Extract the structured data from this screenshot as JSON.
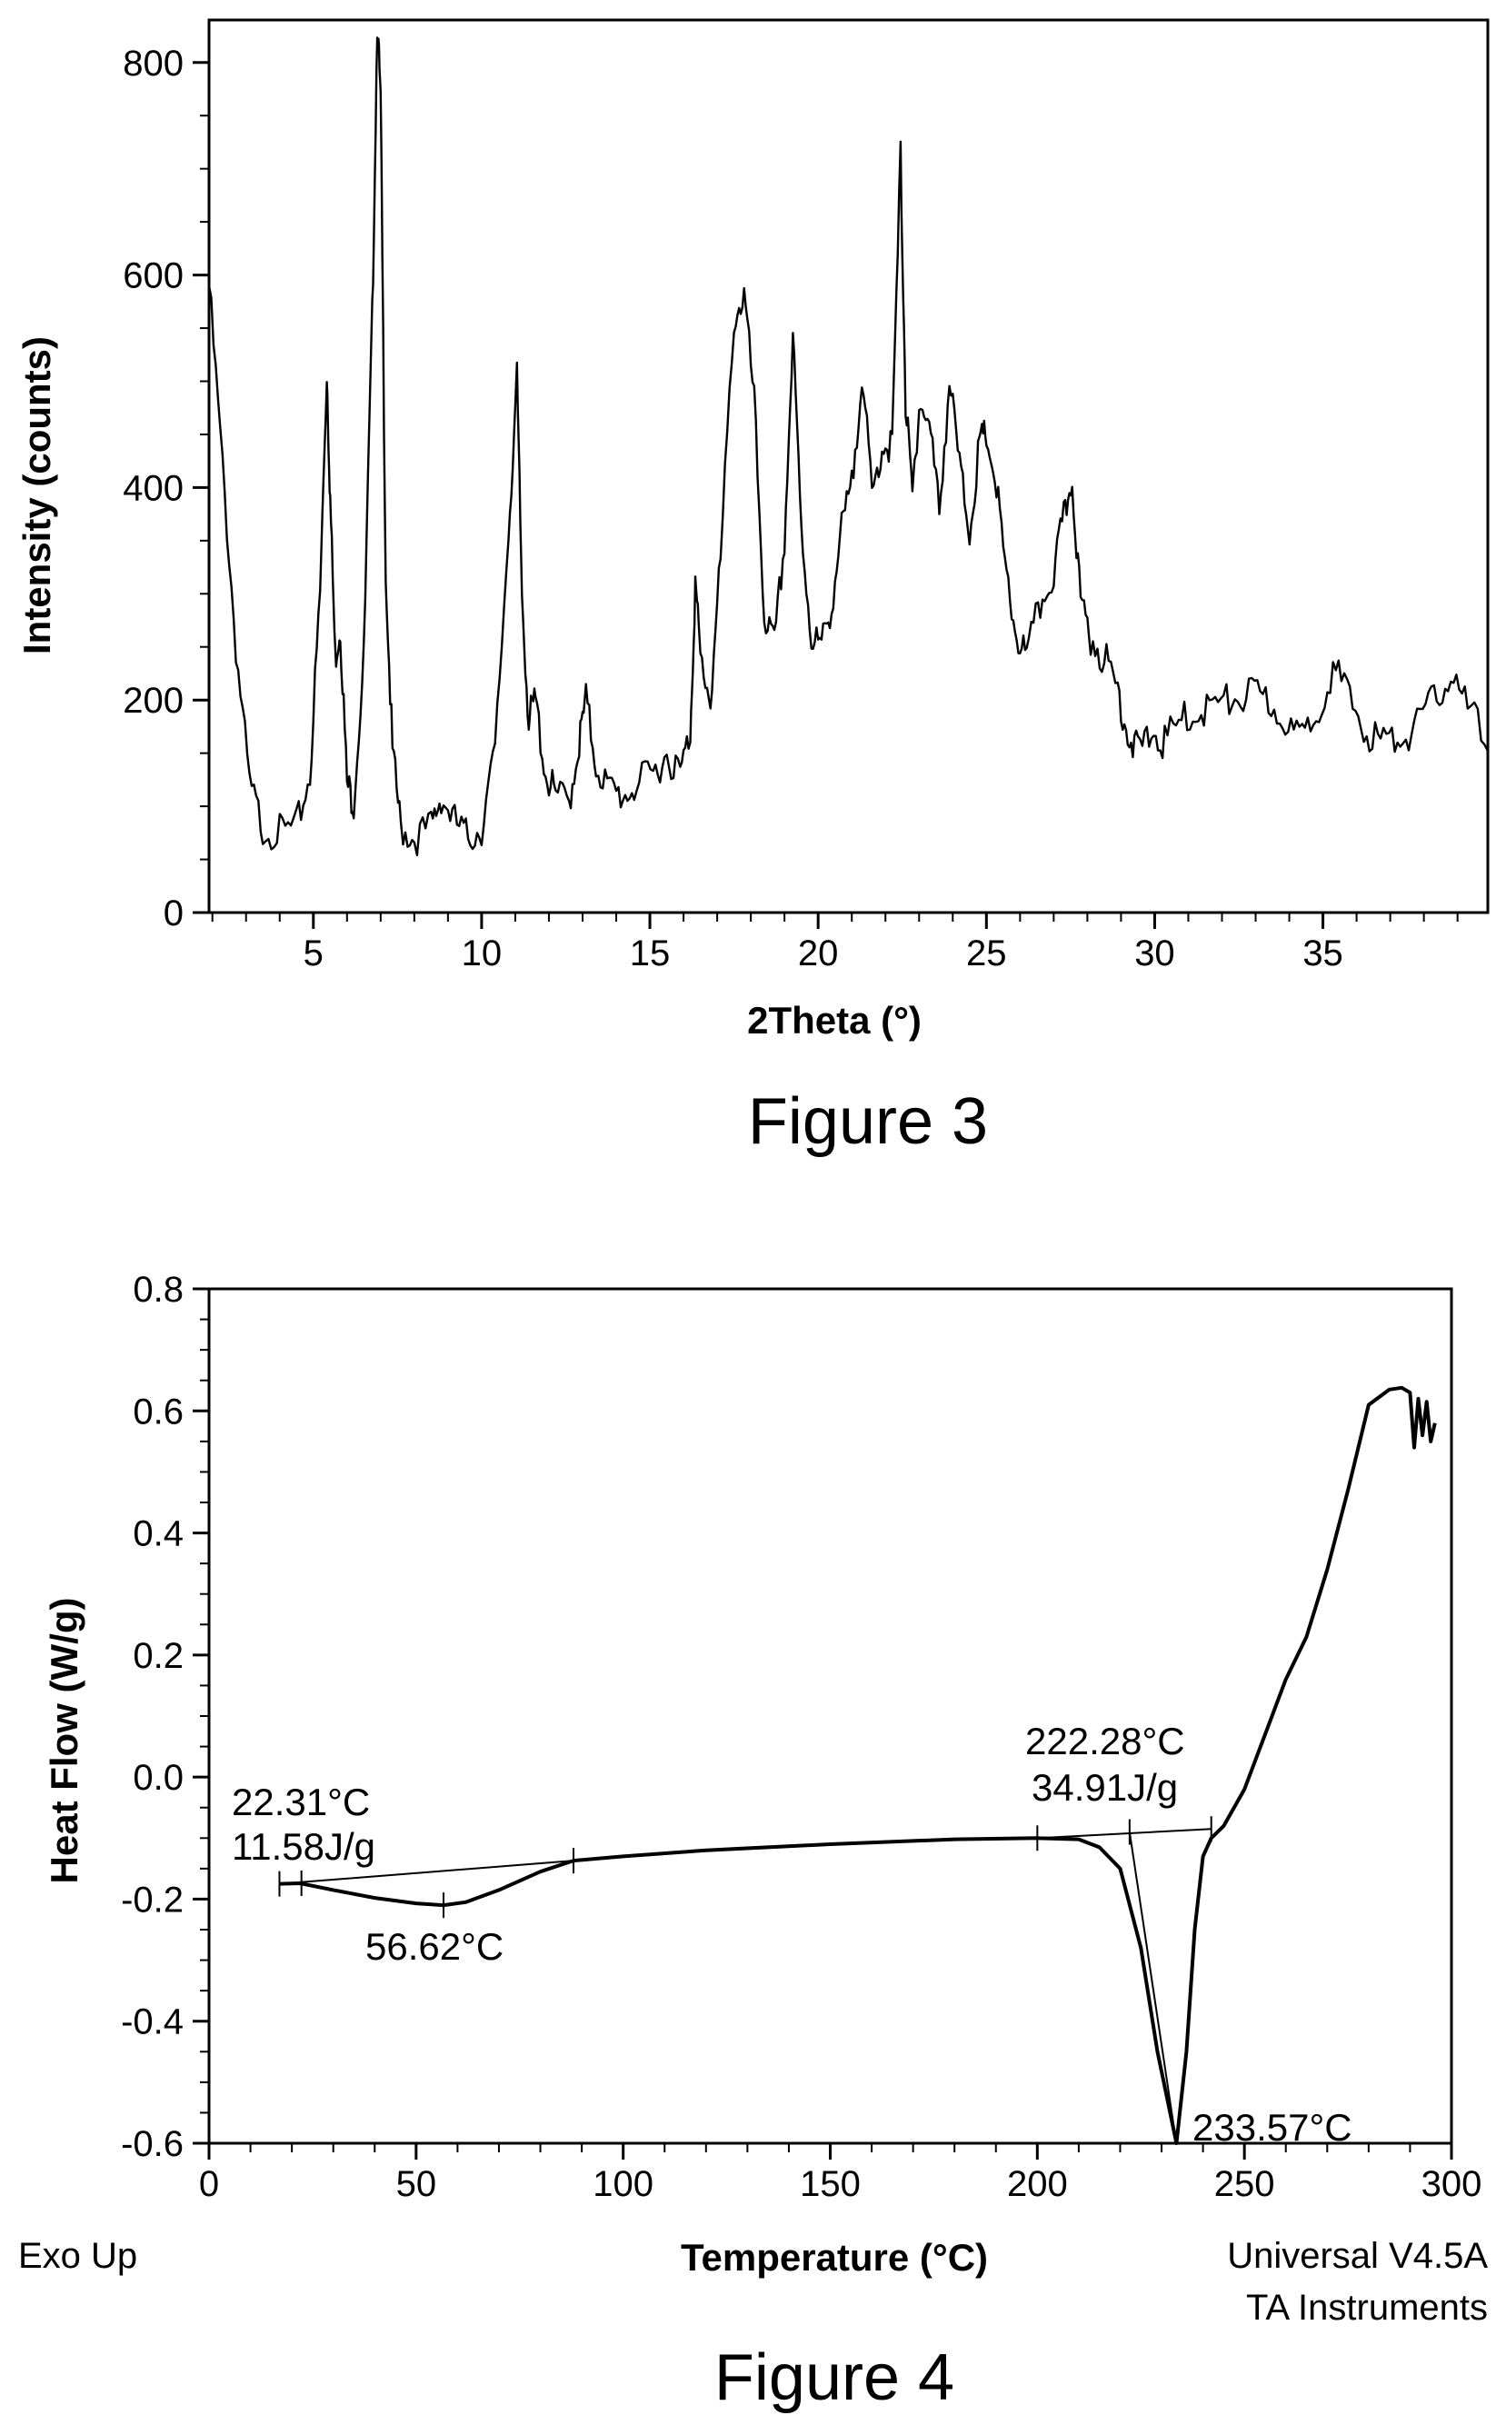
{
  "chart_data": [
    {
      "type": "line",
      "caption": "Figure 3",
      "xlabel": "2Theta (°)",
      "ylabel": "Intensity (counts)",
      "xlim": [
        1.9,
        39.9
      ],
      "ylim": [
        0,
        840
      ],
      "xticks": [
        5,
        10,
        15,
        20,
        25,
        30,
        35
      ],
      "yticks": [
        0,
        200,
        400,
        600,
        800
      ],
      "grid": false,
      "series": [
        {
          "x": [
            1.9,
            2.3,
            2.7,
            3.1,
            3.5,
            4.0,
            4.5,
            4.9,
            5.2,
            5.4,
            5.5,
            5.65,
            5.8,
            6.0,
            6.2,
            6.5,
            6.75,
            6.9,
            7.0,
            7.15,
            7.35,
            7.6,
            8.0,
            8.5,
            8.8,
            9.2,
            9.6,
            10.0,
            10.4,
            10.8,
            11.05,
            11.2,
            11.4,
            11.6,
            11.9,
            12.2,
            12.6,
            12.9,
            13.1,
            13.4,
            13.8,
            14.2,
            14.6,
            15.1,
            15.5,
            15.9,
            16.2,
            16.35,
            16.5,
            16.8,
            17.1,
            17.5,
            17.8,
            18.1,
            18.4,
            18.7,
            19.0,
            19.25,
            19.5,
            19.8,
            20.1,
            20.4,
            20.7,
            21.0,
            21.3,
            21.6,
            21.9,
            22.2,
            22.45,
            22.6,
            22.8,
            23.0,
            23.3,
            23.6,
            23.9,
            24.2,
            24.5,
            24.8,
            25.0,
            25.3,
            25.6,
            25.9,
            26.2,
            26.6,
            27.0,
            27.3,
            27.55,
            27.8,
            28.1,
            28.5,
            28.9,
            29.2,
            29.5,
            29.9,
            30.3,
            30.8,
            31.3,
            31.8,
            32.3,
            32.8,
            33.3,
            33.8,
            34.3,
            34.8,
            35.3,
            35.8,
            36.3,
            36.8,
            37.3,
            37.8,
            38.3,
            38.8,
            39.3,
            39.9
          ],
          "values": [
            590,
            420,
            250,
            120,
            80,
            75,
            80,
            130,
            300,
            510,
            390,
            240,
            270,
            120,
            105,
            240,
            560,
            840,
            760,
            320,
            150,
            80,
            70,
            80,
            110,
            85,
            70,
            80,
            150,
            360,
            500,
            300,
            180,
            200,
            130,
            110,
            105,
            160,
            200,
            140,
            115,
            110,
            120,
            130,
            150,
            130,
            170,
            310,
            240,
            200,
            330,
            560,
            580,
            480,
            280,
            250,
            350,
            540,
            360,
            260,
            250,
            290,
            360,
            400,
            510,
            390,
            440,
            440,
            710,
            480,
            390,
            480,
            460,
            380,
            500,
            420,
            360,
            440,
            450,
            400,
            310,
            260,
            240,
            290,
            320,
            370,
            410,
            290,
            260,
            240,
            210,
            170,
            150,
            170,
            160,
            180,
            190,
            195,
            200,
            205,
            200,
            185,
            160,
            190,
            230,
            200,
            170,
            160,
            165,
            175,
            200,
            225,
            190,
            165
          ]
        }
      ]
    },
    {
      "type": "line",
      "caption": "Figure 4",
      "xlabel": "Temperature (°C)",
      "ylabel": "Heat Flow (W/g)",
      "xlim": [
        0,
        300
      ],
      "ylim": [
        -0.6,
        0.8
      ],
      "xticks": [
        0,
        50,
        100,
        150,
        200,
        250,
        300
      ],
      "yticks": [
        -0.6,
        -0.4,
        -0.2,
        0.0,
        0.2,
        0.4,
        0.6,
        0.8
      ],
      "xtick_labels": [
        "0",
        "50",
        "100",
        "150",
        "200",
        "250",
        "300"
      ],
      "ytick_labels": [
        "-0.6",
        "-0.4",
        "-0.2",
        "0.0",
        "0.2",
        "0.4",
        "0.6",
        "0.8"
      ],
      "grid": false,
      "series": [
        {
          "x": [
            17,
            22,
            30,
            40,
            50,
            56.6,
            62,
            70,
            80,
            88,
            100,
            120,
            150,
            180,
            200,
            210,
            215,
            220,
            225,
            229,
            233.6,
            236,
            238,
            240,
            242,
            245,
            250,
            255,
            260,
            265,
            270,
            275,
            280,
            285,
            288,
            290,
            291,
            292,
            293,
            294,
            295,
            296
          ],
          "values": [
            -0.175,
            -0.174,
            -0.185,
            -0.198,
            -0.207,
            -0.21,
            -0.205,
            -0.185,
            -0.155,
            -0.137,
            -0.13,
            -0.12,
            -0.11,
            -0.102,
            -0.1,
            -0.102,
            -0.115,
            -0.15,
            -0.28,
            -0.45,
            -0.6,
            -0.45,
            -0.25,
            -0.13,
            -0.1,
            -0.08,
            -0.02,
            0.07,
            0.16,
            0.23,
            0.34,
            0.47,
            0.61,
            0.635,
            0.638,
            0.63,
            0.54,
            0.62,
            0.56,
            0.615,
            0.55,
            0.58
          ]
        }
      ],
      "annotations": [
        {
          "text": "22.31°C",
          "x": 22.31
        },
        {
          "text": "11.58J/g"
        },
        {
          "text": "56.62°C",
          "x": 56.62
        },
        {
          "text": "222.28°C",
          "x": 222.28
        },
        {
          "text": "34.91J/g"
        },
        {
          "text": "233.57°C",
          "x": 233.57
        }
      ],
      "corner_left": "Exo Up",
      "corner_right_line1": "Universal V4.5A",
      "corner_right_line2": "TA Instruments"
    }
  ]
}
